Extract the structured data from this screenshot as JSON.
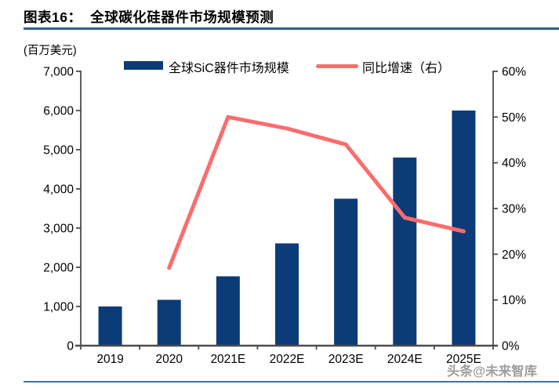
{
  "chart_data": {
    "type": "bar",
    "combo": "bar+line",
    "title": "图表16：  全球碳化硅器件市场规模预测",
    "unit_label": "(百万美元)",
    "categories": [
      "2019",
      "2020",
      "2021E",
      "2022E",
      "2023E",
      "2024E",
      "2025E"
    ],
    "series": [
      {
        "name": "全球SiC器件市场规模",
        "type": "bar",
        "axis": "left",
        "values": [
          1000,
          1170,
          1770,
          2610,
          3750,
          4800,
          6000
        ]
      },
      {
        "name": "同比增速（右）",
        "type": "line",
        "axis": "right",
        "values": [
          null,
          17,
          50,
          47.5,
          44,
          28,
          25
        ]
      }
    ],
    "left_axis": {
      "min": 0,
      "max": 7000,
      "step": 1000,
      "tick_labels": [
        "0",
        "1,000",
        "2,000",
        "3,000",
        "4,000",
        "5,000",
        "6,000",
        "7,000"
      ]
    },
    "right_axis": {
      "min": 0,
      "max": 60,
      "step": 10,
      "tick_labels": [
        "0%",
        "10%",
        "20%",
        "30%",
        "40%",
        "50%",
        "60%"
      ]
    },
    "legend_position": "top",
    "grid": false,
    "colors": {
      "bar": "#0C3C78",
      "line": "#FA6D6D",
      "axis": "#4D4D4D",
      "title_rule": "#2E5E90",
      "bottom_rule": "#44719E",
      "watermark": "#9E9E9E"
    }
  },
  "watermark": {
    "text": "头条@未来智库"
  }
}
